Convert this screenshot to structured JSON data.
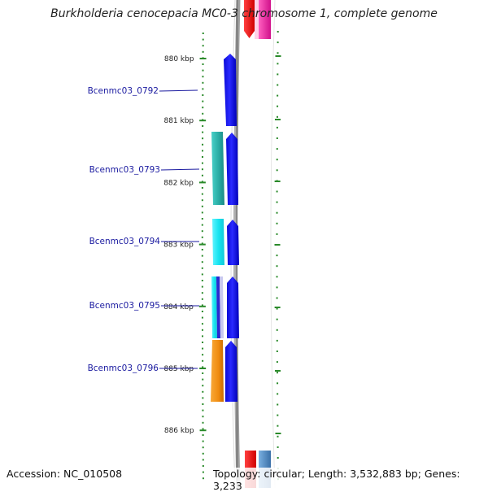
{
  "title": "Burkholderia cenocepacia MC0-3 chromosome 1, complete genome",
  "accession": "Accession: NC_010508",
  "topology": "Topology: circular; Length: 3,532,883 bp; Genes: 3,233",
  "ruler": {
    "ticks": [
      {
        "label": "880 kbp",
        "kbp": 880
      },
      {
        "label": "881 kbp",
        "kbp": 881
      },
      {
        "label": "882 kbp",
        "kbp": 882
      },
      {
        "label": "883 kbp",
        "kbp": 883
      },
      {
        "label": "884 kbp",
        "kbp": 884
      },
      {
        "label": "885 kbp",
        "kbp": 885
      },
      {
        "label": "886 kbp",
        "kbp": 886
      }
    ]
  },
  "genes": [
    {
      "label": "Bcenmc03_0792"
    },
    {
      "label": "Bcenmc03_0793"
    },
    {
      "label": "Bcenmc03_0794"
    },
    {
      "label": "Bcenmc03_0795"
    },
    {
      "label": "Bcenmc03_0796"
    }
  ],
  "colors": {
    "cds": "#1010f0",
    "ring": "#808080",
    "label": "#1a1aa0",
    "ticks": "#2a8a2a",
    "cog_teal": "#33b8b0",
    "cog_cyan": "#22e8f0",
    "cog_orange": "#f09018",
    "top_red": "#f01010",
    "top_pink": "#f030a0",
    "bottom_steel": "#4a88c0"
  }
}
